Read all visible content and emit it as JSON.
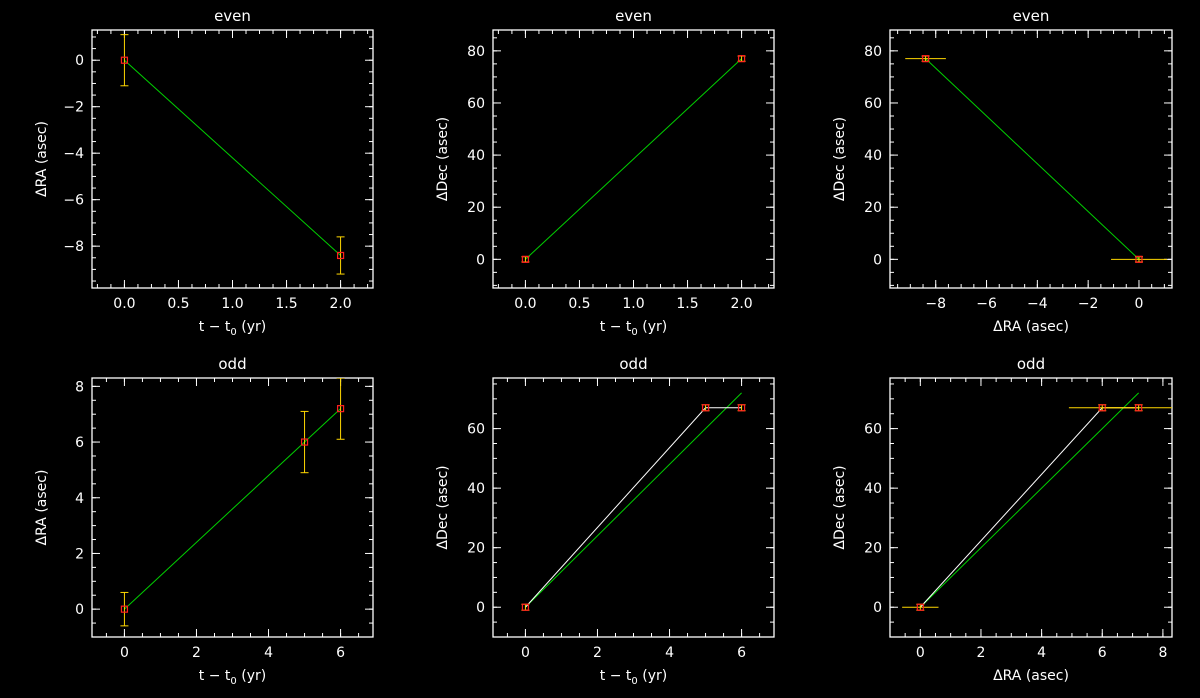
{
  "chart_data": [
    {
      "type": "scatter",
      "title": "even",
      "xlabel": "t − t",
      "xlabel_sub": "0",
      "xlabel_suffix": " (yr)",
      "ylabel": "ΔRA (asec)",
      "xlim": [
        -0.3,
        2.3
      ],
      "ylim": [
        -9.8,
        1.3
      ],
      "xticks": [
        0.0,
        0.5,
        1.0,
        1.5,
        2.0
      ],
      "xtick_labels": [
        "0.0",
        "0.5",
        "1.0",
        "1.5",
        "2.0"
      ],
      "yticks": [
        -8,
        -6,
        -4,
        -2,
        0
      ],
      "ytick_labels": [
        "−8",
        "−6",
        "−4",
        "−2",
        "0"
      ],
      "points": [
        {
          "x": 0.0,
          "y": 0.0,
          "yerr": 1.1
        },
        {
          "x": 2.0,
          "y": -8.4,
          "yerr": 0.8
        }
      ],
      "model_line": {
        "x": [
          0.0,
          2.0
        ],
        "y": [
          0.0,
          -8.4
        ]
      }
    },
    {
      "type": "scatter",
      "title": "even",
      "xlabel": "t − t",
      "xlabel_sub": "0",
      "xlabel_suffix": " (yr)",
      "ylabel": "ΔDec (asec)",
      "xlim": [
        -0.3,
        2.3
      ],
      "ylim": [
        -11,
        88
      ],
      "xticks": [
        0.0,
        0.5,
        1.0,
        1.5,
        2.0
      ],
      "xtick_labels": [
        "0.0",
        "0.5",
        "1.0",
        "1.5",
        "2.0"
      ],
      "yticks": [
        0,
        20,
        40,
        60,
        80
      ],
      "ytick_labels": [
        "0",
        "20",
        "40",
        "60",
        "80"
      ],
      "points": [
        {
          "x": 0.0,
          "y": 0.0,
          "yerr": 1.0
        },
        {
          "x": 2.0,
          "y": 77.0,
          "yerr": 1.0
        }
      ],
      "model_line": {
        "x": [
          0.0,
          2.0
        ],
        "y": [
          0.0,
          77.0
        ]
      }
    },
    {
      "type": "scatter",
      "title": "even",
      "xlabel": "ΔRA (asec)",
      "ylabel": "ΔDec (asec)",
      "xlim": [
        -9.8,
        1.3
      ],
      "ylim": [
        -11,
        88
      ],
      "xticks": [
        -8,
        -6,
        -4,
        -2,
        0
      ],
      "xtick_labels": [
        "−8",
        "−6",
        "−4",
        "−2",
        "0"
      ],
      "yticks": [
        0,
        20,
        40,
        60,
        80
      ],
      "ytick_labels": [
        "0",
        "20",
        "40",
        "60",
        "80"
      ],
      "points": [
        {
          "x": 0.0,
          "y": 0.0,
          "xerr": 1.1,
          "yerr": 1.0
        },
        {
          "x": -8.4,
          "y": 77.0,
          "xerr": 0.8,
          "yerr": 1.0
        }
      ],
      "model_line": {
        "x": [
          0.0,
          -8.4
        ],
        "y": [
          0.0,
          77.0
        ]
      }
    },
    {
      "type": "scatter",
      "title": "odd",
      "xlabel": "t − t",
      "xlabel_sub": "0",
      "xlabel_suffix": " (yr)",
      "ylabel": "ΔRA (asec)",
      "xlim": [
        -0.9,
        6.9
      ],
      "ylim": [
        -1.0,
        8.3
      ],
      "xticks": [
        0,
        2,
        4,
        6
      ],
      "xtick_labels": [
        "0",
        "2",
        "4",
        "6"
      ],
      "yticks": [
        0,
        2,
        4,
        6,
        8
      ],
      "ytick_labels": [
        "0",
        "2",
        "4",
        "6",
        "8"
      ],
      "points": [
        {
          "x": 0,
          "y": 0.0,
          "yerr": 0.6
        },
        {
          "x": 5,
          "y": 6.0,
          "yerr": 1.1
        },
        {
          "x": 6,
          "y": 7.2,
          "yerr": 1.1
        }
      ],
      "model_line": {
        "x": [
          0,
          6
        ],
        "y": [
          0.0,
          7.2
        ]
      }
    },
    {
      "type": "scatter",
      "title": "odd",
      "xlabel": "t − t",
      "xlabel_sub": "0",
      "xlabel_suffix": " (yr)",
      "ylabel": "ΔDec (asec)",
      "xlim": [
        -0.9,
        6.9
      ],
      "ylim": [
        -10,
        77
      ],
      "xticks": [
        0,
        2,
        4,
        6
      ],
      "xtick_labels": [
        "0",
        "2",
        "4",
        "6"
      ],
      "yticks": [
        0,
        20,
        40,
        60
      ],
      "ytick_labels": [
        "0",
        "20",
        "40",
        "60"
      ],
      "points": [
        {
          "x": 0,
          "y": 0.0,
          "yerr": 1.0
        },
        {
          "x": 5,
          "y": 67.0,
          "yerr": 1.0
        },
        {
          "x": 6,
          "y": 67.0,
          "yerr": 1.0
        }
      ],
      "data_line": {
        "x": [
          0,
          5,
          6
        ],
        "y": [
          0.0,
          67.0,
          67.0
        ]
      },
      "model_line": {
        "x": [
          0,
          6
        ],
        "y": [
          0.0,
          72.0
        ]
      }
    },
    {
      "type": "scatter",
      "title": "odd",
      "xlabel": "ΔRA (asec)",
      "ylabel": "ΔDec (asec)",
      "xlim": [
        -1.0,
        8.3
      ],
      "ylim": [
        -10,
        77
      ],
      "xticks": [
        0,
        2,
        4,
        6,
        8
      ],
      "xtick_labels": [
        "0",
        "2",
        "4",
        "6",
        "8"
      ],
      "yticks": [
        0,
        20,
        40,
        60
      ],
      "ytick_labels": [
        "0",
        "20",
        "40",
        "60"
      ],
      "points": [
        {
          "x": 0.0,
          "y": 0.0,
          "xerr": 0.6,
          "yerr": 1.0
        },
        {
          "x": 6.0,
          "y": 67.0,
          "xerr": 1.1,
          "yerr": 1.0
        },
        {
          "x": 7.2,
          "y": 67.0,
          "xerr": 1.1,
          "yerr": 1.0
        }
      ],
      "data_line": {
        "x": [
          0.0,
          6.0,
          7.2
        ],
        "y": [
          0.0,
          67.0,
          67.0
        ]
      },
      "model_line": {
        "x": [
          0.0,
          7.2
        ],
        "y": [
          0.0,
          72.0
        ]
      }
    }
  ],
  "colors": {
    "background": "#000000",
    "axes": "#ffffff",
    "model_line": "#00d000",
    "data_line": "#ffffff",
    "error_bar": "#ffd700",
    "marker": "#ff2020"
  }
}
